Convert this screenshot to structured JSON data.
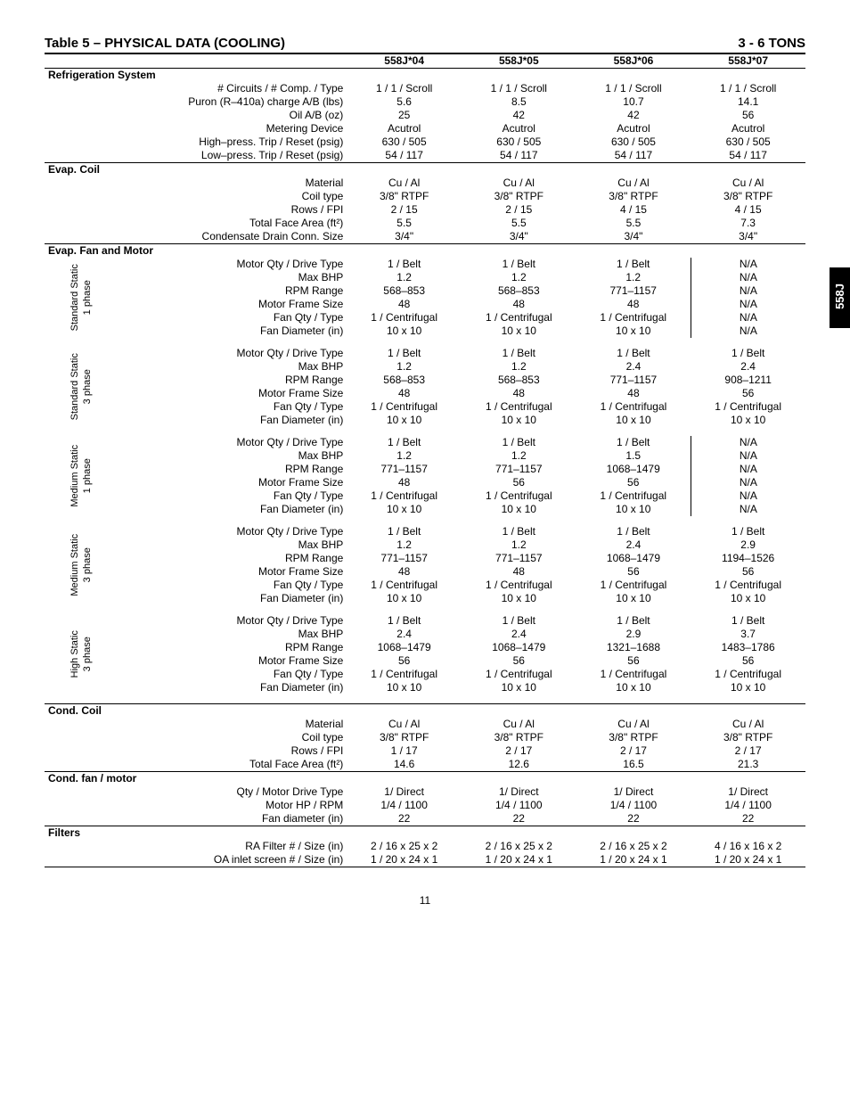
{
  "title_left": "Table 5 – PHYSICAL DATA (COOLING)",
  "title_right": "3 - 6 TONS",
  "side_tab": "558J",
  "page_num": "11",
  "cols": [
    "558J*04",
    "558J*05",
    "558J*06",
    "558J*07"
  ],
  "sections": [
    {
      "header": "Refrigeration System",
      "rows": [
        [
          "# Circuits / # Comp. / Type",
          "1 / 1 / Scroll",
          "1 / 1 / Scroll",
          "1 / 1 / Scroll",
          "1 / 1 / Scroll"
        ],
        [
          "Puron (R–410a) charge A/B (lbs)",
          "5.6",
          "8.5",
          "10.7",
          "14.1"
        ],
        [
          "Oil A/B (oz)",
          "25",
          "42",
          "42",
          "56"
        ],
        [
          "Metering Device",
          "Acutrol",
          "Acutrol",
          "Acutrol",
          "Acutrol"
        ],
        [
          "High–press. Trip / Reset (psig)",
          "630 / 505",
          "630 / 505",
          "630 / 505",
          "630 / 505"
        ],
        [
          "Low–press. Trip / Reset (psig)",
          "54 / 117",
          "54 / 117",
          "54 / 117",
          "54 / 117"
        ]
      ]
    },
    {
      "header": "Evap. Coil",
      "rows": [
        [
          "Material",
          "Cu / Al",
          "Cu / Al",
          "Cu / Al",
          "Cu / Al"
        ],
        [
          "Coil type",
          "3/8\" RTPF",
          "3/8\" RTPF",
          "3/8\" RTPF",
          "3/8\" RTPF"
        ],
        [
          "Rows / FPI",
          "2 / 15",
          "2 / 15",
          "4 / 15",
          "4 / 15"
        ],
        [
          "Total Face Area (ft²)",
          "5.5",
          "5.5",
          "5.5",
          "7.3"
        ],
        [
          "Condensate Drain Conn. Size",
          "3/4\"",
          "3/4\"",
          "3/4\"",
          "3/4\""
        ]
      ]
    }
  ],
  "fan_header": "Evap. Fan and Motor",
  "fan_labels": [
    "Motor Qty / Drive Type",
    "Max BHP",
    "RPM Range",
    "Motor Frame Size",
    "Fan Qty / Type",
    "Fan Diameter (in)"
  ],
  "fan_groups": [
    {
      "name": "Standard Static\n1 phase",
      "vrule": true,
      "data": [
        [
          "1 / Belt",
          "1 / Belt",
          "1 / Belt",
          "N/A"
        ],
        [
          "1.2",
          "1.2",
          "1.2",
          "N/A"
        ],
        [
          "568–853",
          "568–853",
          "771–1157",
          "N/A"
        ],
        [
          "48",
          "48",
          "48",
          "N/A"
        ],
        [
          "1 / Centrifugal",
          "1 / Centrifugal",
          "1 / Centrifugal",
          "N/A"
        ],
        [
          "10 x 10",
          "10 x 10",
          "10 x 10",
          "N/A"
        ]
      ]
    },
    {
      "name": "Standard Static\n3 phase",
      "vrule": false,
      "data": [
        [
          "1 / Belt",
          "1 / Belt",
          "1 / Belt",
          "1 / Belt"
        ],
        [
          "1.2",
          "1.2",
          "2.4",
          "2.4"
        ],
        [
          "568–853",
          "568–853",
          "771–1157",
          "908–1211"
        ],
        [
          "48",
          "48",
          "48",
          "56"
        ],
        [
          "1 / Centrifugal",
          "1 / Centrifugal",
          "1 / Centrifugal",
          "1 / Centrifugal"
        ],
        [
          "10 x 10",
          "10 x 10",
          "10 x 10",
          "10 x 10"
        ]
      ]
    },
    {
      "name": "Medium Static\n1 phase",
      "vrule": true,
      "data": [
        [
          "1 / Belt",
          "1 / Belt",
          "1 / Belt",
          "N/A"
        ],
        [
          "1.2",
          "1.2",
          "1.5",
          "N/A"
        ],
        [
          "771–1157",
          "771–1157",
          "1068–1479",
          "N/A"
        ],
        [
          "48",
          "56",
          "56",
          "N/A"
        ],
        [
          "1 / Centrifugal",
          "1 / Centrifugal",
          "1 / Centrifugal",
          "N/A"
        ],
        [
          "10 x 10",
          "10 x 10",
          "10 x 10",
          "N/A"
        ]
      ]
    },
    {
      "name": "Medium Static\n3 phase",
      "vrule": false,
      "data": [
        [
          "1 / Belt",
          "1 / Belt",
          "1 / Belt",
          "1 / Belt"
        ],
        [
          "1.2",
          "1.2",
          "2.4",
          "2.9"
        ],
        [
          "771–1157",
          "771–1157",
          "1068–1479",
          "1194–1526"
        ],
        [
          "48",
          "48",
          "56",
          "56"
        ],
        [
          "1 / Centrifugal",
          "1 / Centrifugal",
          "1 / Centrifugal",
          "1 / Centrifugal"
        ],
        [
          "10 x 10",
          "10 x 10",
          "10 x 10",
          "10 x 10"
        ]
      ]
    },
    {
      "name": "High Static\n3 phase",
      "vrule": false,
      "data": [
        [
          "1 / Belt",
          "1 / Belt",
          "1 / Belt",
          "1 / Belt"
        ],
        [
          "2.4",
          "2.4",
          "2.9",
          "3.7"
        ],
        [
          "1068–1479",
          "1068–1479",
          "1321–1688",
          "1483–1786"
        ],
        [
          "56",
          "56",
          "56",
          "56"
        ],
        [
          "1 / Centrifugal",
          "1 / Centrifugal",
          "1 / Centrifugal",
          "1 / Centrifugal"
        ],
        [
          "10 x 10",
          "10 x 10",
          "10 x 10",
          "10 x 10"
        ]
      ]
    }
  ],
  "tail_sections": [
    {
      "header": "Cond. Coil",
      "rows": [
        [
          "Material",
          "Cu / Al",
          "Cu / Al",
          "Cu / Al",
          "Cu / Al"
        ],
        [
          "Coil type",
          "3/8\" RTPF",
          "3/8\" RTPF",
          "3/8\" RTPF",
          "3/8\" RTPF"
        ],
        [
          "Rows / FPI",
          "1 / 17",
          "2 / 17",
          "2 / 17",
          "2 / 17"
        ],
        [
          "Total Face Area (ft²)",
          "14.6",
          "12.6",
          "16.5",
          "21.3"
        ]
      ]
    },
    {
      "header": "Cond. fan / motor",
      "rows": [
        [
          "Qty / Motor Drive Type",
          "1/ Direct",
          "1/ Direct",
          "1/ Direct",
          "1/ Direct"
        ],
        [
          "Motor HP / RPM",
          "1/4 / 1100",
          "1/4 / 1100",
          "1/4 / 1100",
          "1/4 / 1100"
        ],
        [
          "Fan diameter (in)",
          "22",
          "22",
          "22",
          "22"
        ]
      ]
    },
    {
      "header": "Filters",
      "rows": [
        [
          "RA Filter # / Size (in)",
          "2 / 16 x 25 x 2",
          "2 / 16 x 25 x 2",
          "2 / 16 x 25 x 2",
          "4 / 16 x 16 x 2"
        ],
        [
          "OA inlet screen # / Size (in)",
          "1 / 20 x 24 x 1",
          "1 / 20 x 24 x 1",
          "1 / 20 x 24 x 1",
          "1 / 20 x 24 x 1"
        ]
      ],
      "bottom_rule": true
    }
  ]
}
